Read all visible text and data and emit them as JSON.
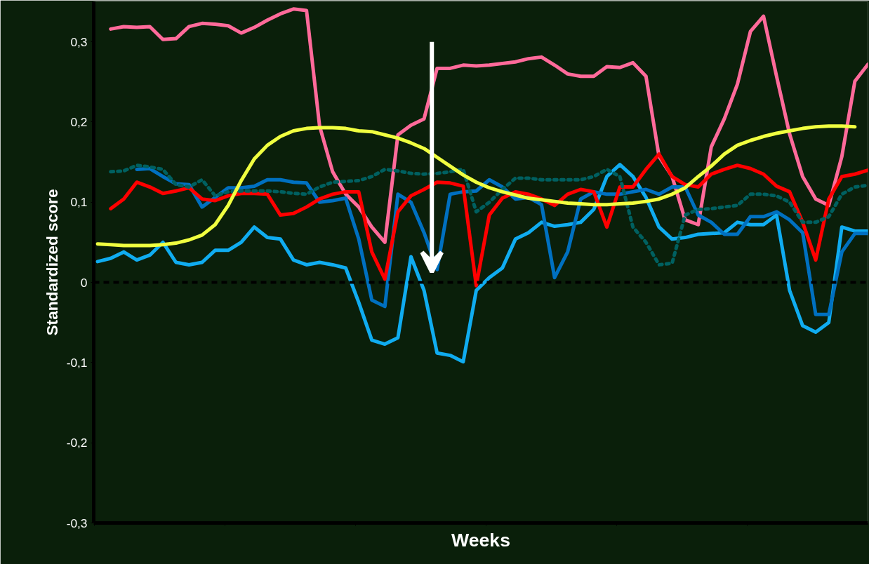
{
  "chart_data": {
    "type": "line",
    "xlabel": "Weeks",
    "ylabel": "Standardized score",
    "categories": [
      null,
      null,
      null,
      null,
      null,
      null,
      null,
      null,
      null,
      null,
      null,
      null,
      null,
      null,
      null,
      null,
      null,
      null,
      null,
      null,
      null,
      null,
      null,
      null,
      null,
      null,
      null,
      null,
      null,
      null,
      null,
      null,
      null,
      null,
      null,
      null,
      null,
      null,
      null,
      null,
      null,
      null,
      null,
      null,
      null,
      null,
      null,
      null,
      null,
      null,
      null,
      null,
      null,
      null,
      null,
      null,
      null,
      null,
      null,
      null
    ],
    "ylim": [
      -0.3,
      0.35
    ],
    "yticks": [
      {
        "value": -0.3,
        "label": "-0,3"
      },
      {
        "value": -0.2,
        "label": "-0,2"
      },
      {
        "value": -0.1,
        "label": "-0,1"
      },
      0,
      {
        "value": 0.1,
        "label": "0,1"
      },
      {
        "value": 0.2,
        "label": "0,2"
      },
      {
        "value": 0.3,
        "label": "0,3"
      }
    ],
    "tick_labels": "y",
    "grid": false,
    "marker": "none",
    "ref_lines": [
      {
        "axis": "y",
        "value": 0,
        "color": "#000000",
        "line_style": "dashed"
      }
    ],
    "series": [
      {
        "color": "#ff6a9a",
        "values": [
          null,
          0.316,
          0.319,
          0.318,
          0.319,
          0.303,
          0.304,
          0.319,
          0.323,
          0.322,
          0.32,
          0.311,
          0.318,
          0.327,
          0.335,
          0.341,
          0.339,
          0.195,
          0.138,
          0.11,
          0.094,
          0.069,
          0.05,
          0.184,
          0.196,
          0.204,
          0.267,
          0.267,
          0.271,
          0.27,
          0.271,
          0.273,
          0.275,
          0.279,
          0.281,
          0.271,
          0.26,
          0.257,
          0.257,
          0.269,
          0.268,
          0.274,
          0.257,
          0.157,
          0.132,
          0.078,
          0.072,
          0.169,
          0.204,
          0.247,
          0.313,
          0.332,
          0.257,
          0.185,
          0.132,
          0.104,
          0.096,
          0.157,
          0.251,
          0.272
        ]
      },
      {
        "color": "#10acf0",
        "values": [
          0.026,
          0.03,
          0.038,
          0.028,
          0.034,
          0.05,
          0.025,
          0.022,
          0.025,
          0.04,
          0.04,
          0.05,
          0.069,
          0.056,
          0.054,
          0.028,
          0.022,
          0.025,
          0.022,
          0.018,
          -0.025,
          -0.072,
          -0.077,
          -0.069,
          0.032,
          -0.01,
          -0.088,
          -0.091,
          -0.099,
          -0.01,
          0.006,
          0.018,
          0.054,
          0.062,
          0.075,
          0.07,
          0.072,
          0.075,
          0.091,
          0.132,
          0.147,
          0.132,
          0.106,
          0.069,
          0.054,
          0.056,
          0.06,
          0.061,
          0.062,
          0.075,
          0.072,
          0.072,
          0.084,
          -0.01,
          -0.054,
          -0.062,
          -0.05,
          0.069,
          0.064,
          0.064
        ]
      },
      {
        "color": "#0070c0",
        "values": [
          null,
          null,
          null,
          0.141,
          0.142,
          0.132,
          0.123,
          0.122,
          0.094,
          0.106,
          0.118,
          0.118,
          0.12,
          0.128,
          0.128,
          0.125,
          0.124,
          0.1,
          0.102,
          0.105,
          0.054,
          -0.022,
          -0.03,
          0.11,
          0.1,
          0.062,
          0.016,
          0.11,
          0.113,
          0.114,
          0.128,
          0.119,
          0.104,
          0.106,
          0.097,
          0.006,
          0.038,
          0.104,
          0.113,
          0.11,
          0.11,
          0.113,
          0.116,
          0.11,
          0.119,
          0.119,
          0.084,
          0.075,
          0.06,
          0.06,
          0.082,
          0.082,
          0.088,
          0.078,
          0.062,
          -0.04,
          -0.04,
          0.038,
          0.061,
          0.061
        ]
      },
      {
        "color": "#ff0000",
        "values": [
          null,
          0.092,
          0.104,
          0.125,
          0.119,
          0.111,
          0.114,
          0.118,
          0.104,
          0.102,
          0.108,
          0.111,
          0.111,
          0.11,
          0.084,
          0.086,
          0.094,
          0.104,
          0.11,
          0.113,
          0.113,
          0.038,
          0.004,
          0.088,
          0.108,
          0.116,
          0.125,
          0.124,
          0.12,
          -0.004,
          0.084,
          0.105,
          0.113,
          0.11,
          0.104,
          0.096,
          0.11,
          0.116,
          0.113,
          0.069,
          0.119,
          0.119,
          0.141,
          0.16,
          0.132,
          0.122,
          0.119,
          0.135,
          0.141,
          0.146,
          0.142,
          0.135,
          0.12,
          0.113,
          0.075,
          0.028,
          0.104,
          0.132,
          0.135,
          0.14
        ]
      },
      {
        "color": "#006060",
        "line_style": "dotted",
        "values": [
          null,
          0.138,
          0.139,
          0.146,
          0.144,
          0.141,
          0.122,
          0.119,
          0.128,
          0.108,
          0.113,
          0.114,
          0.114,
          0.114,
          0.113,
          0.111,
          0.11,
          0.119,
          0.125,
          0.126,
          0.127,
          0.132,
          0.141,
          0.139,
          0.136,
          0.135,
          0.136,
          0.138,
          0.141,
          0.088,
          0.1,
          0.116,
          0.13,
          0.13,
          0.128,
          0.128,
          0.128,
          0.128,
          0.132,
          0.141,
          0.132,
          0.069,
          0.05,
          0.022,
          0.024,
          0.084,
          0.091,
          0.092,
          0.094,
          0.096,
          0.11,
          0.11,
          0.108,
          0.1,
          0.075,
          0.075,
          0.082,
          0.11,
          0.119,
          0.121
        ]
      },
      {
        "color": "#f0ff40",
        "values": [
          0.048,
          0.047,
          0.046,
          0.046,
          0.046,
          0.047,
          0.049,
          0.053,
          0.059,
          0.072,
          0.096,
          0.127,
          0.154,
          0.171,
          0.182,
          0.189,
          0.192,
          0.193,
          0.193,
          0.192,
          0.189,
          0.188,
          0.184,
          0.18,
          0.174,
          0.167,
          0.156,
          0.145,
          0.134,
          0.125,
          0.118,
          0.113,
          0.109,
          0.105,
          0.103,
          0.101,
          0.099,
          0.098,
          0.097,
          0.097,
          0.098,
          0.099,
          0.101,
          0.104,
          0.11,
          0.118,
          0.132,
          0.145,
          0.16,
          0.171,
          0.177,
          0.182,
          0.186,
          0.189,
          0.192,
          0.194,
          0.195,
          0.195,
          0.194,
          null
        ]
      }
    ]
  }
}
